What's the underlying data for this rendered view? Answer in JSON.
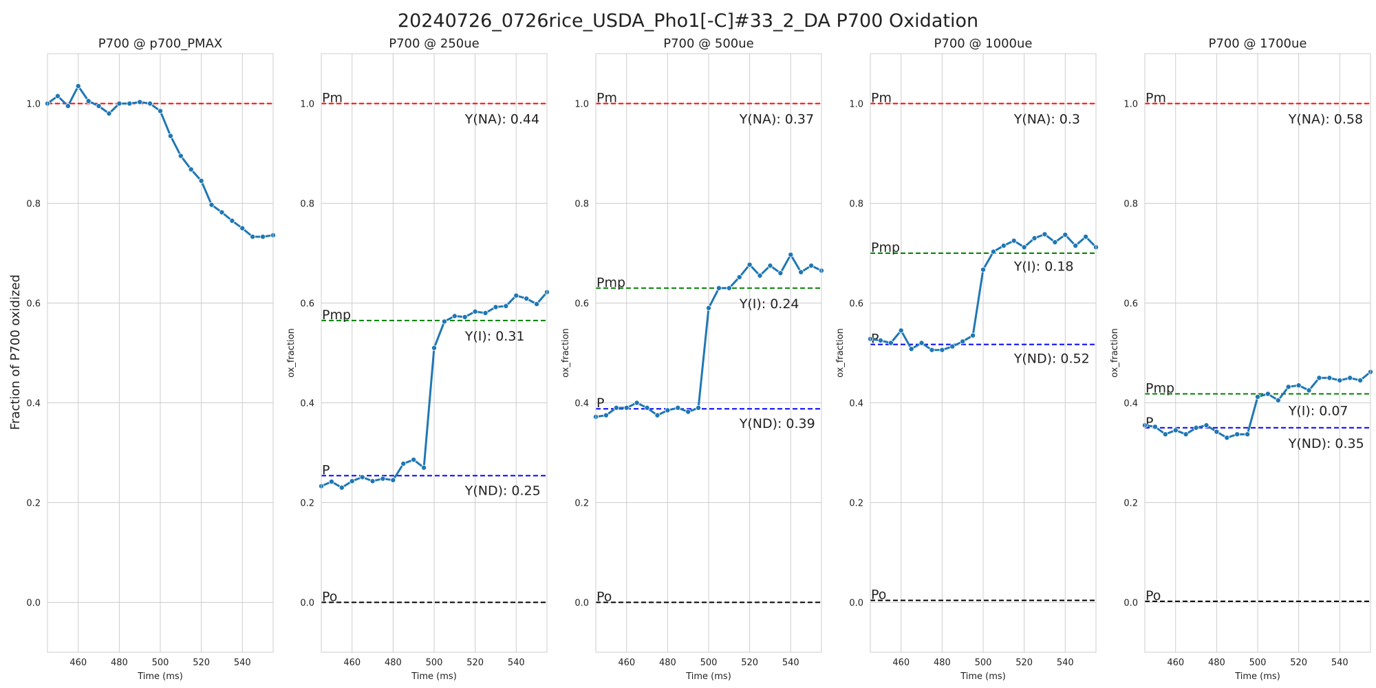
{
  "figure": {
    "title": "20240726_0726rice_USDA_Pho1[-C]#33_2_DA P700 Oxidation",
    "ylabel": "Fraction of P700 oxidized"
  },
  "colors": {
    "line": "#1f77b4",
    "pm": "#ff0000",
    "pmp": "#008000",
    "p": "#0000ff",
    "po": "#000000",
    "grid": "#cccccc"
  },
  "chart_data": [
    {
      "type": "line",
      "title": "P700 @ p700_PMAX",
      "xlabel": "Time (ms)",
      "ylabel": "",
      "xlim": [
        445,
        555
      ],
      "ylim": [
        -0.1,
        1.1
      ],
      "xticks": [
        460,
        480,
        500,
        520,
        540
      ],
      "yticks": [
        0.0,
        0.2,
        0.4,
        0.6,
        0.8,
        1.0
      ],
      "grid": true,
      "x": [
        445,
        450,
        455,
        460,
        465,
        470,
        475,
        480,
        485,
        490,
        495,
        500,
        505,
        510,
        515,
        520,
        525,
        530,
        535,
        540,
        545,
        550,
        555
      ],
      "y": [
        1.0,
        1.015,
        0.995,
        1.035,
        1.005,
        0.995,
        0.98,
        1.0,
        1.0,
        1.003,
        1.0,
        0.985,
        0.935,
        0.895,
        0.868,
        0.845,
        0.797,
        0.782,
        0.765,
        0.75,
        0.733,
        0.733,
        0.736
      ],
      "hlines": [
        {
          "key": "pm",
          "y": 1.0,
          "label": ""
        }
      ],
      "annotations": []
    },
    {
      "type": "line",
      "title": "P700 @ 250ue",
      "xlabel": "Time (ms)",
      "ylabel": "ox_fraction",
      "xlim": [
        445,
        555
      ],
      "ylim": [
        -0.1,
        1.1
      ],
      "xticks": [
        460,
        480,
        500,
        520,
        540
      ],
      "yticks": [
        0.0,
        0.2,
        0.4,
        0.6,
        0.8,
        1.0
      ],
      "grid": true,
      "x": [
        445,
        450,
        455,
        460,
        465,
        470,
        475,
        480,
        485,
        490,
        495,
        500,
        505,
        510,
        515,
        520,
        525,
        530,
        535,
        540,
        545,
        550,
        555
      ],
      "y": [
        0.233,
        0.242,
        0.23,
        0.243,
        0.251,
        0.243,
        0.248,
        0.245,
        0.278,
        0.286,
        0.27,
        0.51,
        0.563,
        0.574,
        0.572,
        0.583,
        0.58,
        0.592,
        0.594,
        0.615,
        0.609,
        0.598,
        0.622
      ],
      "hlines": [
        {
          "key": "pm",
          "y": 1.0,
          "label": "Pm"
        },
        {
          "key": "pmp",
          "y": 0.565,
          "label": "Pmp"
        },
        {
          "key": "p",
          "y": 0.254,
          "label": "P"
        },
        {
          "key": "po",
          "y": 0.0,
          "label": "Po"
        }
      ],
      "annotations": [
        {
          "text": "Y(NA): 0.44",
          "y": 0.96
        },
        {
          "text": "Y(I): 0.31",
          "y": 0.525
        },
        {
          "text": "Y(ND): 0.25",
          "y": 0.215
        }
      ]
    },
    {
      "type": "line",
      "title": "P700 @ 500ue",
      "xlabel": "Time (ms)",
      "ylabel": "ox_fraction",
      "xlim": [
        445,
        555
      ],
      "ylim": [
        -0.1,
        1.1
      ],
      "xticks": [
        460,
        480,
        500,
        520,
        540
      ],
      "yticks": [
        0.0,
        0.2,
        0.4,
        0.6,
        0.8,
        1.0
      ],
      "grid": true,
      "x": [
        445,
        450,
        455,
        460,
        465,
        470,
        475,
        480,
        485,
        490,
        495,
        500,
        505,
        510,
        515,
        520,
        525,
        530,
        535,
        540,
        545,
        550,
        555
      ],
      "y": [
        0.372,
        0.375,
        0.39,
        0.39,
        0.4,
        0.39,
        0.375,
        0.385,
        0.39,
        0.382,
        0.39,
        0.59,
        0.63,
        0.63,
        0.652,
        0.677,
        0.655,
        0.675,
        0.66,
        0.697,
        0.662,
        0.675,
        0.665
      ],
      "hlines": [
        {
          "key": "pm",
          "y": 1.0,
          "label": "Pm"
        },
        {
          "key": "pmp",
          "y": 0.63,
          "label": "Pmp"
        },
        {
          "key": "p",
          "y": 0.388,
          "label": "P"
        },
        {
          "key": "po",
          "y": 0.0,
          "label": "Po"
        }
      ],
      "annotations": [
        {
          "text": "Y(NA): 0.37",
          "y": 0.96
        },
        {
          "text": "Y(I): 0.24",
          "y": 0.59
        },
        {
          "text": "Y(ND): 0.39",
          "y": 0.35
        }
      ]
    },
    {
      "type": "line",
      "title": "P700 @ 1000ue",
      "xlabel": "Time (ms)",
      "ylabel": "ox_fraction",
      "xlim": [
        445,
        555
      ],
      "ylim": [
        -0.1,
        1.1
      ],
      "xticks": [
        460,
        480,
        500,
        520,
        540
      ],
      "yticks": [
        0.0,
        0.2,
        0.4,
        0.6,
        0.8,
        1.0
      ],
      "grid": true,
      "x": [
        445,
        450,
        455,
        460,
        465,
        470,
        475,
        480,
        485,
        490,
        495,
        500,
        505,
        510,
        515,
        520,
        525,
        530,
        535,
        540,
        545,
        550,
        555
      ],
      "y": [
        0.528,
        0.525,
        0.52,
        0.545,
        0.508,
        0.52,
        0.506,
        0.506,
        0.513,
        0.523,
        0.535,
        0.667,
        0.703,
        0.715,
        0.725,
        0.712,
        0.73,
        0.738,
        0.722,
        0.737,
        0.715,
        0.733,
        0.712
      ],
      "hlines": [
        {
          "key": "pm",
          "y": 1.0,
          "label": "Pm"
        },
        {
          "key": "pmp",
          "y": 0.7,
          "label": "Pmp"
        },
        {
          "key": "p",
          "y": 0.517,
          "label": "P"
        },
        {
          "key": "po",
          "y": 0.004,
          "label": "Po"
        }
      ],
      "annotations": [
        {
          "text": "Y(NA): 0.3",
          "y": 0.96
        },
        {
          "text": "Y(I): 0.18",
          "y": 0.665
        },
        {
          "text": "Y(ND): 0.52",
          "y": 0.48
        }
      ]
    },
    {
      "type": "line",
      "title": "P700 @ 1700ue",
      "xlabel": "Time (ms)",
      "ylabel": "ox_fraction",
      "xlim": [
        445,
        555
      ],
      "ylim": [
        -0.1,
        1.1
      ],
      "xticks": [
        460,
        480,
        500,
        520,
        540
      ],
      "yticks": [
        0.0,
        0.2,
        0.4,
        0.6,
        0.8,
        1.0
      ],
      "grid": true,
      "x": [
        445,
        450,
        455,
        460,
        465,
        470,
        475,
        480,
        485,
        490,
        495,
        500,
        505,
        510,
        515,
        520,
        525,
        530,
        535,
        540,
        545,
        550,
        555
      ],
      "y": [
        0.355,
        0.352,
        0.337,
        0.345,
        0.337,
        0.35,
        0.355,
        0.342,
        0.33,
        0.337,
        0.337,
        0.412,
        0.418,
        0.405,
        0.432,
        0.435,
        0.425,
        0.45,
        0.45,
        0.445,
        0.45,
        0.445,
        0.462
      ],
      "hlines": [
        {
          "key": "pm",
          "y": 1.0,
          "label": "Pm"
        },
        {
          "key": "pmp",
          "y": 0.418,
          "label": "Pmp"
        },
        {
          "key": "p",
          "y": 0.35,
          "label": "P"
        },
        {
          "key": "po",
          "y": 0.002,
          "label": "Po"
        }
      ],
      "annotations": [
        {
          "text": "Y(NA): 0.58",
          "y": 0.96
        },
        {
          "text": "Y(I): 0.07",
          "y": 0.375
        },
        {
          "text": "Y(ND): 0.35",
          "y": 0.31
        }
      ]
    }
  ]
}
